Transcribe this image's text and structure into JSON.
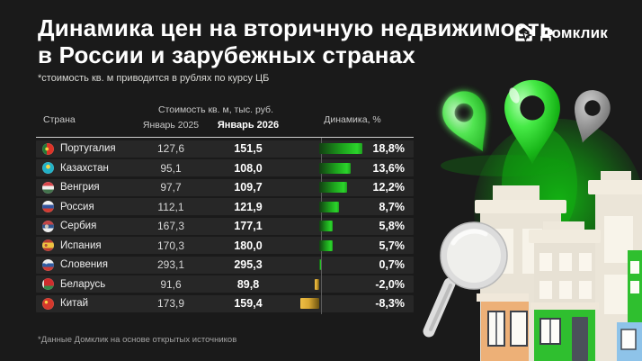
{
  "header": {
    "title_line1": "Динамика цен на вторичную недвижимость",
    "title_line2": "в России и зарубежных странах",
    "subtitle": "*стоимость кв. м приводится в рублях по курсу ЦБ",
    "logo_text": "Домклик"
  },
  "table": {
    "columns": {
      "country": "Страна",
      "price_group": "Стоимость кв. м, тыс. руб.",
      "jan_2025": "Январь 2025",
      "jan_2026": "Январь 2026",
      "dynamics": "Динамика, %"
    },
    "rows": [
      {
        "country": "Португалия",
        "flag": "pt",
        "jan_2025": "127,6",
        "jan_2026": "151,5",
        "dynamics": "18,8%",
        "pct": 18.8
      },
      {
        "country": "Казахстан",
        "flag": "kz",
        "jan_2025": "95,1",
        "jan_2026": "108,0",
        "dynamics": "13,6%",
        "pct": 13.6
      },
      {
        "country": "Венгрия",
        "flag": "hu",
        "jan_2025": "97,7",
        "jan_2026": "109,7",
        "dynamics": "12,2%",
        "pct": 12.2
      },
      {
        "country": "Россия",
        "flag": "ru",
        "jan_2025": "112,1",
        "jan_2026": "121,9",
        "dynamics": "8,7%",
        "pct": 8.7
      },
      {
        "country": "Сербия",
        "flag": "rs",
        "jan_2025": "167,3",
        "jan_2026": "177,1",
        "dynamics": "5,8%",
        "pct": 5.8
      },
      {
        "country": "Испания",
        "flag": "es",
        "jan_2025": "170,3",
        "jan_2026": "180,0",
        "dynamics": "5,7%",
        "pct": 5.7
      },
      {
        "country": "Словения",
        "flag": "si",
        "jan_2025": "293,1",
        "jan_2026": "295,3",
        "dynamics": "0,7%",
        "pct": 0.7
      },
      {
        "country": "Беларусь",
        "flag": "by",
        "jan_2025": "91,6",
        "jan_2026": "89,8",
        "dynamics": "-2,0%",
        "pct": -2.0
      },
      {
        "country": "Китай",
        "flag": "cn",
        "jan_2025": "173,9",
        "jan_2026": "159,4",
        "dynamics": "-8,3%",
        "pct": -8.3
      }
    ]
  },
  "footer": {
    "note": "*Данные Домклик на основе открытых источников"
  },
  "decor_icons": [
    "domclick-house-icon",
    "map-pin-icon-green-tilted",
    "map-pin-icon-green-large",
    "map-pin-icon-gray",
    "magnifier-icon",
    "buildings-illustration"
  ],
  "colors": {
    "background": "#1a1a1a",
    "row_background": "#272727",
    "positive_bar": "#2bd42b",
    "negative_bar": "#d9a832",
    "accent_green": "#2fbf2f"
  },
  "chart_data": {
    "type": "bar",
    "orientation": "horizontal",
    "title": "Динамика цен на вторичную недвижимость в России и зарубежных странах",
    "subtitle": "*стоимость кв. м приводится в рублях по курсу ЦБ",
    "categories": [
      "Португалия",
      "Казахстан",
      "Венгрия",
      "Россия",
      "Сербия",
      "Испания",
      "Словения",
      "Беларусь",
      "Китай"
    ],
    "series": [
      {
        "name": "Январь 2025, тыс. руб.",
        "values": [
          127.6,
          95.1,
          97.7,
          112.1,
          167.3,
          170.3,
          293.1,
          91.6,
          173.9
        ]
      },
      {
        "name": "Январь 2026, тыс. руб.",
        "values": [
          151.5,
          108.0,
          109.7,
          121.9,
          177.1,
          180.0,
          295.3,
          89.8,
          159.4
        ]
      },
      {
        "name": "Динамика, %",
        "values": [
          18.8,
          13.6,
          12.2,
          8.7,
          5.8,
          5.7,
          0.7,
          -2.0,
          -8.3
        ]
      }
    ],
    "xlabel": "Динамика, %",
    "ylabel": "Страна",
    "legend_position": "none",
    "grid": false,
    "note": "*Данные Домклик на основе открытых источников"
  }
}
